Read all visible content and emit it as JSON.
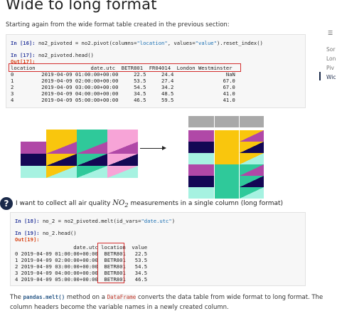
{
  "page": {
    "title": "Wide to long format",
    "intro": "Starting again from the wide format table created in the previous section:"
  },
  "code1": {
    "in16_prompt": "In [16]:",
    "in16_code_a": " no2_pivoted = no2.pivot(columns=",
    "in16_str1": "\"location\"",
    "in16_code_b": ", values=",
    "in16_str2": "\"value\"",
    "in16_code_c": ").reset_index()",
    "in17_prompt": "In [17]:",
    "in17_code": " no2_pivoted.head()",
    "out17_prompt": "Out[17]:",
    "header1": "location                  date.utc  BETR801  FR04014  London Westminster",
    "row0": "0         2019-04-09 01:00:00+00:00     22.5     24.4                 NaN",
    "row1": "1         2019-04-09 02:00:00+00:00     53.5     27.4                67.0",
    "row2": "2         2019-04-09 03:00:00+00:00     54.5     34.2                67.0",
    "row3": "3         2019-04-09 04:00:00+00:00     34.5     48.5                41.0",
    "row4": "4         2019-04-09 05:00:00+00:00     46.5     59.5                41.0"
  },
  "question": {
    "icon": "?",
    "text_before": "I want to collect all air quality ",
    "math_no": "NO",
    "math_sub": "2",
    "text_after": " measurements in a single column (long format)"
  },
  "code2": {
    "in18_prompt": "In [18]:",
    "in18_code_a": " no_2 = no2_pivoted.melt(id_vars=",
    "in18_str": "\"date.utc\"",
    "in18_code_b": ")",
    "in19_prompt": "In [19]:",
    "in19_code": " no_2.head()",
    "out19_prompt": "Out[19]:",
    "header": "                   date.utc location  value",
    "row0": "0 2019-04-09 01:00:00+00:00  BETR801   22.5",
    "row1": "1 2019-04-09 02:00:00+00:00  BETR801   53.5",
    "row2": "2 2019-04-09 03:00:00+00:00  BETR801   54.5",
    "row3": "3 2019-04-09 04:00:00+00:00  BETR801   34.5",
    "row4": "4 2019-04-09 05:00:00+00:00  BETR801   46.5"
  },
  "footer": {
    "p1_a": "The ",
    "p1_code1": "pandas.melt()",
    "p1_b": " method on a ",
    "p1_code2": "DataFrame",
    "p1_c": " converts the data table from wide format to long format. The",
    "p2": "column headers become the variable names in a newly created column."
  },
  "toc": {
    "icon": "☰",
    "items": [
      "Sor",
      "Lon",
      "Piv",
      "Wic"
    ]
  },
  "colors": {
    "yellow": "#f9c60d",
    "green": "#2fc99a",
    "pink": "#f7a4d7",
    "navy": "#130754",
    "purple": "#b048a7",
    "grey": "#a9a9a9",
    "mint": "#a6f2e1",
    "lavender": "#cbb7f0",
    "accent_red": "#d32f2f"
  }
}
